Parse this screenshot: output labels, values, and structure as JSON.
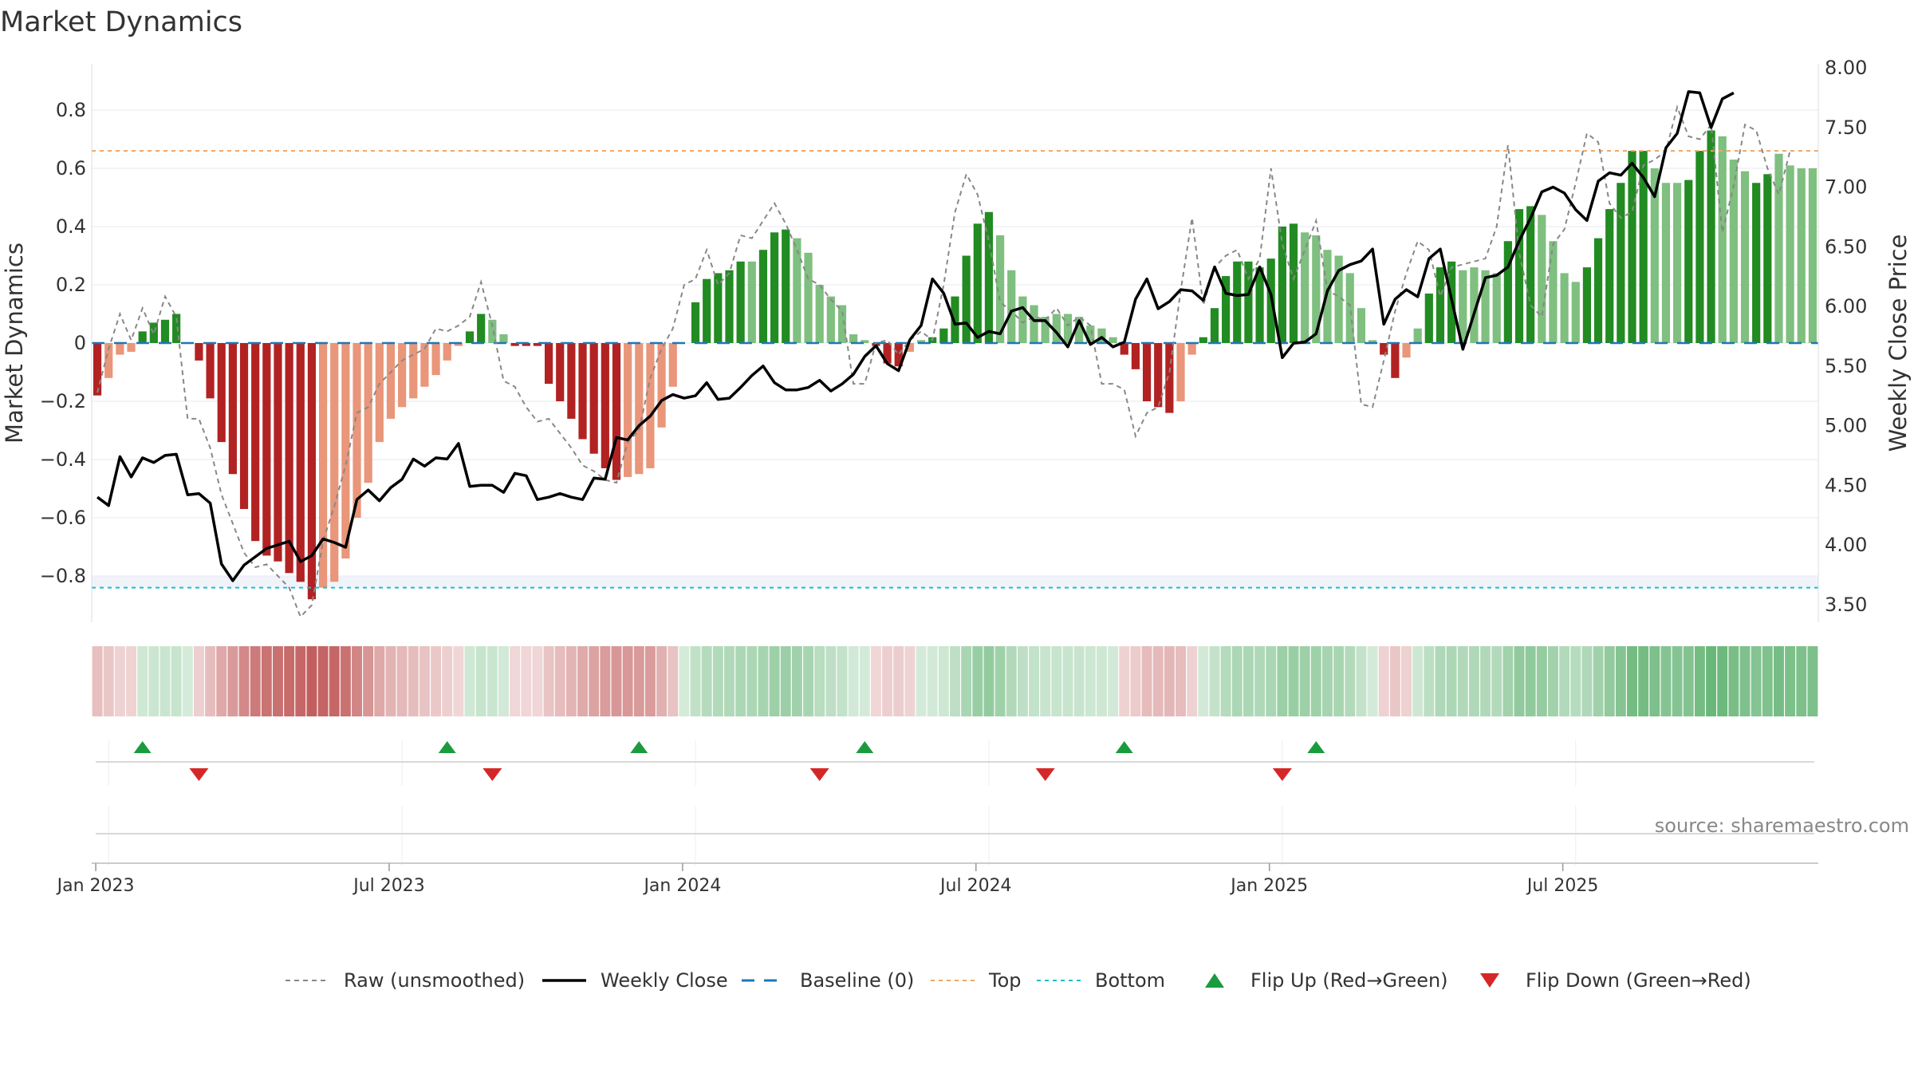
{
  "title": "Market Dynamics",
  "source": "source: sharemaestro.com",
  "colors": {
    "strong_red": "#b22222",
    "weak_red": "#e9967a",
    "strong_green": "#228b22",
    "weak_green": "#7fbf7f",
    "price_line": "#000000",
    "raw_line": "#888888",
    "baseline": "#1f77b4",
    "top": "#f4a460",
    "bottom": "#17becf",
    "flip_up": "#1a9c3e",
    "flip_down": "#d62728"
  },
  "chart_data": {
    "type": "bar",
    "title": "Market Dynamics",
    "ylabel_left": "Market Dynamics",
    "ylabel_right": "Weekly Close Price",
    "ylim_left": [
      -0.95,
      0.95
    ],
    "ylim_right": [
      3.3,
      8.05
    ],
    "left_ticks": [
      "0.8",
      "0.6",
      "0.4",
      "0.2",
      "0",
      "−0.2",
      "−0.4",
      "−0.6",
      "−0.8"
    ],
    "left_tick_values": [
      0.8,
      0.6,
      0.4,
      0.2,
      0,
      -0.2,
      -0.4,
      -0.6,
      -0.8
    ],
    "right_ticks": [
      "8.00",
      "7.50",
      "7.00",
      "6.50",
      "6.00",
      "5.50",
      "5.00",
      "4.50",
      "4.00",
      "3.50"
    ],
    "right_tick_values": [
      8.0,
      7.5,
      7.0,
      6.5,
      6.0,
      5.5,
      5.0,
      4.5,
      4.0,
      3.5
    ],
    "x_start": "2022-12-26",
    "x_ticks": [
      "Jan 2023",
      "Jul 2023",
      "Jan 2024",
      "Jul 2024",
      "Jan 2025",
      "Jul 2025"
    ],
    "x_tick_weeks": [
      1,
      27,
      53,
      79,
      105,
      131
    ],
    "top_level": 0.66,
    "bottom_level": -0.84,
    "baseline": 0,
    "grid": true,
    "legend_position": "bottom",
    "series": [
      {
        "name": "Market Dynamics",
        "kind": "bar",
        "values": [
          -0.18,
          -0.12,
          -0.04,
          -0.03,
          0.04,
          0.07,
          0.08,
          0.1,
          0,
          -0.06,
          -0.19,
          -0.34,
          -0.45,
          -0.57,
          -0.68,
          -0.73,
          -0.75,
          -0.79,
          -0.82,
          -0.88,
          -0.84,
          -0.82,
          -0.74,
          -0.6,
          -0.48,
          -0.34,
          -0.26,
          -0.22,
          -0.19,
          -0.15,
          -0.11,
          -0.06,
          -0.01,
          0.04,
          0.1,
          0.08,
          0.03,
          -0.01,
          -0.01,
          -0.01,
          -0.14,
          -0.2,
          -0.26,
          -0.33,
          -0.38,
          -0.43,
          -0.47,
          -0.46,
          -0.45,
          -0.43,
          -0.29,
          -0.15,
          0,
          0.14,
          0.22,
          0.24,
          0.25,
          0.28,
          0.28,
          0.32,
          0.38,
          0.39,
          0.36,
          0.31,
          0.2,
          0.16,
          0.13,
          0.03,
          0.01,
          -0.01,
          -0.07,
          -0.08,
          -0.03,
          0.01,
          0.02,
          0.05,
          0.16,
          0.3,
          0.41,
          0.45,
          0.37,
          0.25,
          0.16,
          0.13,
          0.09,
          0.1,
          0.1,
          0.09,
          0.06,
          0.05,
          0.02,
          -0.04,
          -0.09,
          -0.2,
          -0.22,
          -0.24,
          -0.2,
          -0.04,
          0.02,
          0.12,
          0.23,
          0.28,
          0.28,
          0.26,
          0.29,
          0.4,
          0.41,
          0.38,
          0.37,
          0.32,
          0.3,
          0.24,
          0.12,
          0.01,
          -0.04,
          -0.12,
          -0.05,
          0.05,
          0.17,
          0.26,
          0.28,
          0.25,
          0.26,
          0.25,
          0.24,
          0.35,
          0.46,
          0.47,
          0.44,
          0.35,
          0.24,
          0.21,
          0.26,
          0.36,
          0.46,
          0.55,
          0.66,
          0.66,
          0.6,
          0.55,
          0.55,
          0.56,
          0.66,
          0.73,
          0.71,
          0.63,
          0.59,
          0.55,
          0.58,
          0.65,
          0.61,
          0.6,
          0.6
        ],
        "strength": [
          1,
          0,
          0,
          0,
          1,
          1,
          1,
          1,
          0,
          1,
          1,
          1,
          1,
          1,
          1,
          1,
          1,
          1,
          1,
          1,
          0,
          0,
          0,
          0,
          0,
          0,
          0,
          0,
          0,
          0,
          0,
          0,
          0,
          1,
          1,
          0,
          0,
          1,
          1,
          1,
          1,
          1,
          1,
          1,
          1,
          1,
          1,
          0,
          0,
          0,
          0,
          0,
          1,
          1,
          1,
          1,
          1,
          1,
          0,
          1,
          1,
          1,
          0,
          0,
          0,
          0,
          0,
          0,
          0,
          1,
          1,
          1,
          0,
          0,
          1,
          1,
          1,
          1,
          1,
          1,
          0,
          0,
          0,
          0,
          0,
          0,
          0,
          0,
          0,
          0,
          0,
          1,
          1,
          1,
          1,
          1,
          0,
          0,
          1,
          1,
          1,
          1,
          1,
          1,
          1,
          1,
          1,
          0,
          0,
          0,
          0,
          0,
          0,
          0,
          1,
          1,
          0,
          0,
          1,
          1,
          1,
          0,
          0,
          0,
          0,
          1,
          1,
          1,
          0,
          0,
          0,
          0,
          1,
          1,
          1,
          1,
          1,
          1,
          0,
          0,
          0,
          1,
          1,
          1,
          0,
          0,
          0,
          1,
          1,
          0,
          0,
          0
        ]
      },
      {
        "name": "Raw (unsmoothed)",
        "kind": "line",
        "values": [
          -0.17,
          -0.02,
          0.1,
          0.01,
          0.12,
          0.03,
          0.16,
          0.09,
          -0.26,
          -0.26,
          -0.36,
          -0.52,
          -0.62,
          -0.72,
          -0.77,
          -0.76,
          -0.8,
          -0.84,
          -0.94,
          -0.9,
          -0.68,
          -0.56,
          -0.42,
          -0.24,
          -0.22,
          -0.14,
          -0.1,
          -0.06,
          -0.04,
          -0.02,
          0.05,
          0.04,
          0.06,
          0.09,
          0.21,
          0.06,
          -0.13,
          -0.15,
          -0.22,
          -0.27,
          -0.26,
          -0.31,
          -0.36,
          -0.42,
          -0.44,
          -0.47,
          -0.48,
          -0.34,
          -0.3,
          -0.12,
          -0.02,
          0.05,
          0.2,
          0.22,
          0.32,
          0.2,
          0.24,
          0.37,
          0.36,
          0.42,
          0.48,
          0.41,
          0.32,
          0.22,
          0.2,
          0.15,
          0.11,
          -0.14,
          -0.14,
          0.0,
          0.01,
          -0.04,
          0.01,
          0.04,
          0.01,
          0.2,
          0.45,
          0.58,
          0.51,
          0.35,
          0.14,
          0.11,
          0.07,
          0.09,
          0.08,
          0.12,
          0.06,
          0.09,
          0.06,
          -0.14,
          -0.14,
          -0.16,
          -0.32,
          -0.24,
          -0.22,
          -0.1,
          0.18,
          0.43,
          0.13,
          0.26,
          0.3,
          0.32,
          0.22,
          0.29,
          0.6,
          0.34,
          0.22,
          0.32,
          0.42,
          0.18,
          0.16,
          0.13,
          -0.21,
          -0.22,
          -0.06,
          0.11,
          0.24,
          0.35,
          0.32,
          0.16,
          0.26,
          0.27,
          0.28,
          0.29,
          0.4,
          0.68,
          0.31,
          0.13,
          0.09,
          0.34,
          0.39,
          0.55,
          0.72,
          0.69,
          0.48,
          0.43,
          0.45,
          0.61,
          0.63,
          0.66,
          0.81,
          0.71,
          0.7,
          0.75,
          0.38,
          0.54,
          0.75,
          0.73,
          0.6,
          0.51,
          0.66
        ]
      },
      {
        "name": "Weekly Close",
        "kind": "line",
        "axis": "right",
        "values": [
          4.4,
          4.33,
          4.74,
          4.57,
          4.73,
          4.69,
          4.75,
          4.76,
          4.42,
          4.43,
          4.35,
          3.84,
          3.7,
          3.83,
          3.9,
          3.97,
          4.0,
          4.03,
          3.86,
          3.91,
          4.05,
          4.02,
          3.98,
          4.38,
          4.46,
          4.37,
          4.48,
          4.55,
          4.72,
          4.66,
          4.73,
          4.72,
          4.85,
          4.49,
          4.5,
          4.5,
          4.44,
          4.6,
          4.58,
          4.38,
          4.4,
          4.43,
          4.4,
          4.38,
          4.56,
          4.55,
          4.9,
          4.88,
          5.0,
          5.08,
          5.21,
          5.26,
          5.23,
          5.25,
          5.36,
          5.22,
          5.23,
          5.32,
          5.42,
          5.5,
          5.36,
          5.3,
          5.3,
          5.32,
          5.38,
          5.29,
          5.35,
          5.43,
          5.58,
          5.67,
          5.52,
          5.46,
          5.72,
          5.84,
          6.23,
          6.11,
          5.85,
          5.86,
          5.74,
          5.79,
          5.77,
          5.96,
          5.99,
          5.88,
          5.88,
          5.78,
          5.66,
          5.88,
          5.68,
          5.74,
          5.66,
          5.7,
          6.06,
          6.23,
          5.98,
          6.04,
          6.14,
          6.13,
          6.05,
          6.33,
          6.11,
          6.09,
          6.1,
          6.33,
          6.1,
          5.57,
          5.69,
          5.7,
          5.77,
          6.13,
          6.3,
          6.35,
          6.38,
          6.48,
          5.85,
          6.06,
          6.14,
          6.08,
          6.4,
          6.48,
          6.06,
          5.64,
          5.94,
          6.24,
          6.26,
          6.33,
          6.55,
          6.74,
          6.96,
          7.0,
          6.95,
          6.81,
          6.72,
          7.05,
          7.12,
          7.1,
          7.2,
          7.08,
          6.92,
          7.33,
          7.45,
          7.8,
          7.79,
          7.5,
          7.74,
          7.79
        ]
      }
    ],
    "flips_up_weeks": [
      4,
      31,
      48,
      68,
      91,
      108
    ],
    "flips_down_weeks": [
      9,
      35,
      64,
      84,
      105
    ]
  },
  "legend": [
    {
      "label": "Raw (unsmoothed)",
      "kind": "dashed-gray"
    },
    {
      "label": "Weekly Close",
      "kind": "solid-black"
    },
    {
      "label": "Baseline (0)",
      "kind": "dashed-blue"
    },
    {
      "label": "Top",
      "kind": "dotted-orange"
    },
    {
      "label": "Bottom",
      "kind": "dotted-cyan"
    },
    {
      "label": "Flip Up (Red→Green)",
      "kind": "triangle-up"
    },
    {
      "label": "Flip Down (Green→Red)",
      "kind": "triangle-down"
    }
  ]
}
